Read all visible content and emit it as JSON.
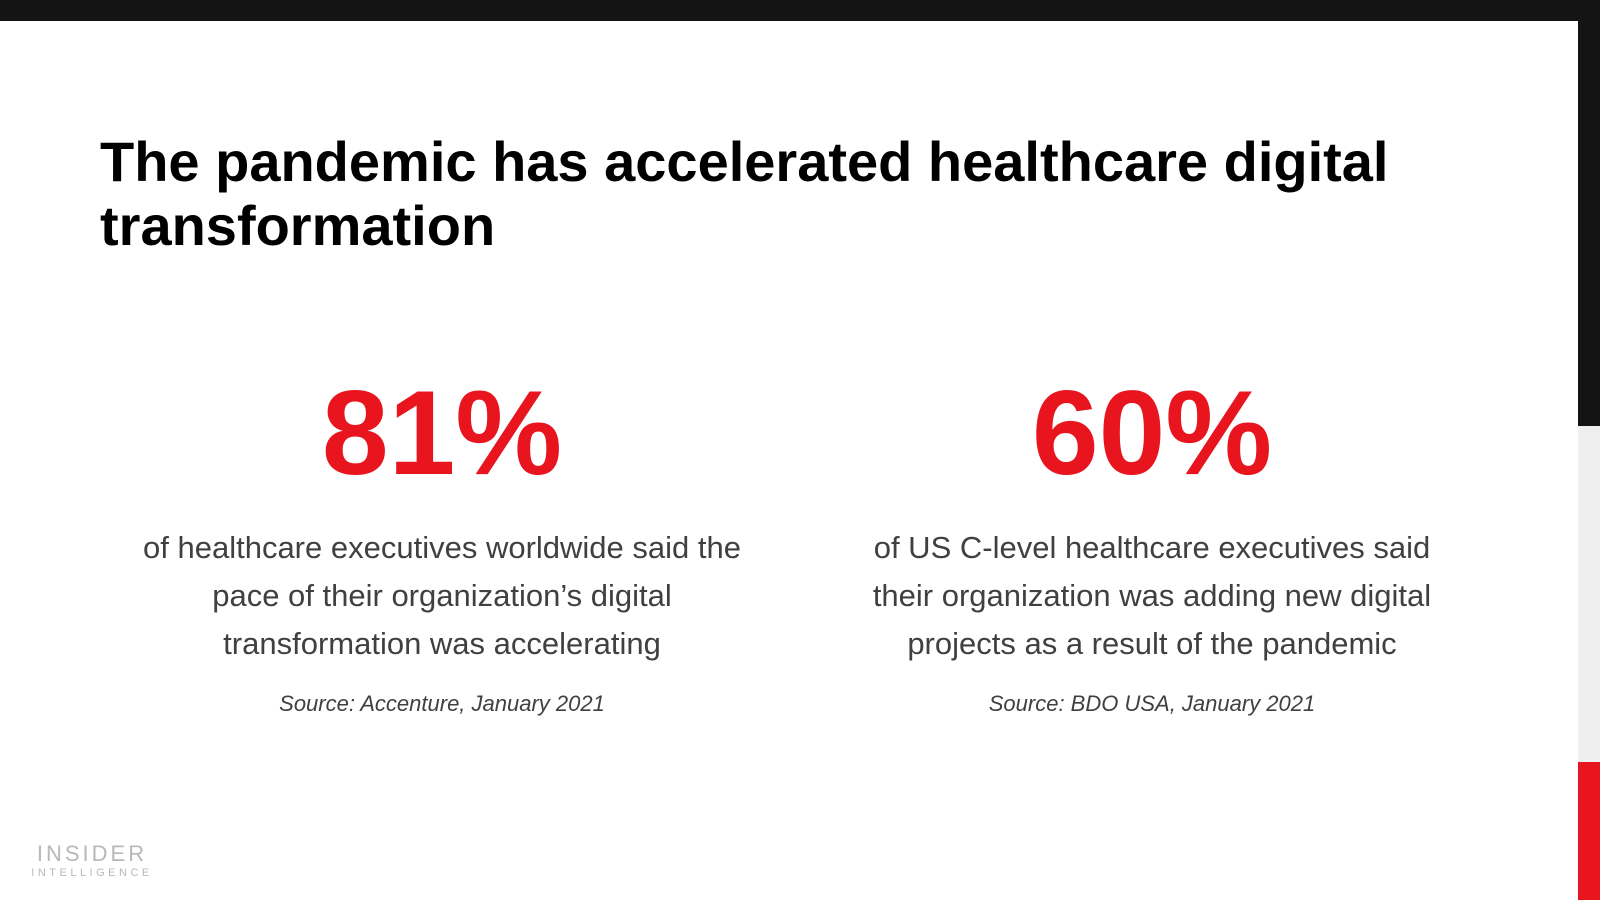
{
  "slide": {
    "title": "The pandemic has accelerated healthcare digital transformation",
    "stats": [
      {
        "value": "81%",
        "description": "of healthcare executives worldwide said the pace of their organization’s digital transformation was accelerating",
        "source": "Source: Accenture, January 2021"
      },
      {
        "value": "60%",
        "description": "of US C-level healthcare executives said their organization was adding new digital projects as a result of the pandemic",
        "source": "Source: BDO USA, January 2021"
      }
    ],
    "logo": {
      "line1": "INSIDER",
      "line2": "INTELLIGENCE"
    },
    "colors": {
      "accent": "#e8141e",
      "dark": "#141414",
      "text": "#404040",
      "logo": "#b8b8b8"
    }
  }
}
